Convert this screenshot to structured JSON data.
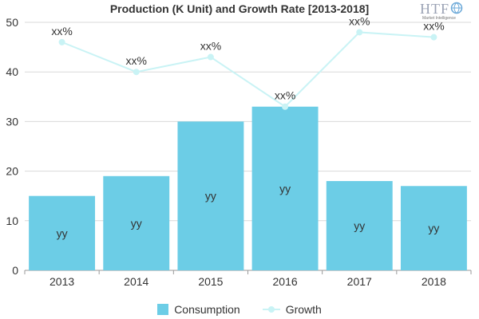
{
  "chart_data": {
    "type": "bar",
    "title": "Production (K Unit) and Growth Rate [2013-2018]",
    "categories": [
      "2013",
      "2014",
      "2015",
      "2016",
      "2017",
      "2018"
    ],
    "series": [
      {
        "name": "Consumption",
        "type": "bar",
        "values": [
          15,
          19,
          30,
          33,
          18,
          17
        ],
        "data_labels": [
          "yy",
          "yy",
          "yy",
          "yy",
          "yy",
          "yy"
        ],
        "color": "#6ccde6"
      },
      {
        "name": "Growth",
        "type": "line",
        "values": [
          46,
          40,
          43,
          33,
          48,
          47
        ],
        "data_labels": [
          "xx%",
          "xx%",
          "xx%",
          "xx%",
          "xx%",
          "xx%"
        ],
        "color": "#c9f3f5"
      }
    ],
    "y_ticks": [
      "0",
      "10",
      "20",
      "30",
      "40",
      "50"
    ],
    "ylim": [
      0,
      50
    ],
    "grid": true,
    "legend_position": "bottom"
  },
  "logo": {
    "text": "HTF",
    "subtext": "Market Intelligence"
  }
}
